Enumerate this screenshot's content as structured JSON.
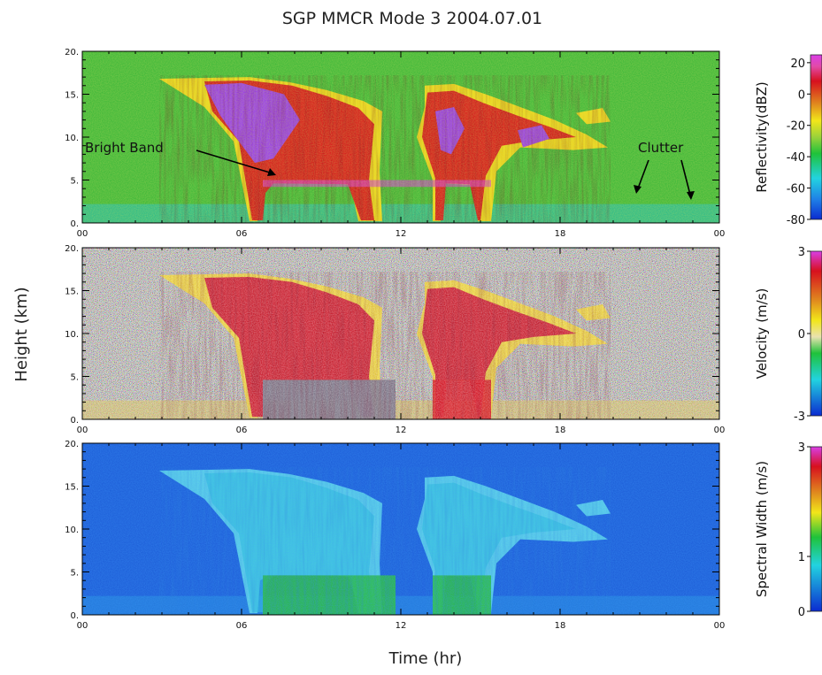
{
  "title": "SGP MMCR Mode 3 2004.07.01",
  "ylabel": "Height (km)",
  "xlabel": "Time (hr)",
  "annotations": {
    "bright_band": "Bright Band",
    "clutter": "Clutter"
  },
  "chart_data": [
    {
      "type": "heatmap",
      "field": "reflectivity",
      "colorbar_label": "Reflectivity(dBZ)",
      "colorbar_ticks": [
        "20",
        "0",
        "-20",
        "-40",
        "-60",
        "-80"
      ],
      "colorbar_values": [
        20,
        0,
        -20,
        -40,
        -60,
        -80
      ],
      "clim": [
        -80,
        25
      ],
      "x_ticks": [
        "00",
        "06",
        "12",
        "18",
        "00"
      ],
      "x_values": [
        0,
        6,
        12,
        18,
        24
      ],
      "y_ticks": [
        "20.",
        "15.",
        "10.",
        "5.",
        "0."
      ],
      "y_values": [
        20,
        15,
        10,
        5,
        0
      ],
      "xlim": [
        0,
        24
      ],
      "ylim": [
        0,
        20
      ],
      "background": "#3fb83a",
      "colormap": [
        "#0b2bd0",
        "#1f7fe6",
        "#22d3e0",
        "#1fc23a",
        "#3fb83a",
        "#f2e61a",
        "#d89418",
        "#d7101e",
        "#a80c36",
        "#d93ee6",
        "#9b3cf0"
      ],
      "regions": [
        {
          "x": [
            2.9,
            6.3,
            9.8,
            11.3
          ],
          "y": [
            16.8,
            17.0,
            4.6,
            0.2
          ],
          "level": "high",
          "color": "#d7101e"
        },
        {
          "x": [
            13.0,
            15.2,
            19.8
          ],
          "y": [
            16.0,
            13.0,
            8.8
          ],
          "level": "high",
          "color": "#d7101e"
        },
        {
          "x": [
            6.4,
            8.2
          ],
          "y": [
            14.5,
            7.0
          ],
          "level": "max",
          "color": "#9b3cf0"
        }
      ]
    },
    {
      "type": "heatmap",
      "field": "velocity",
      "colorbar_label": "Velocity (m/s)",
      "colorbar_ticks": [
        "3",
        "0",
        "-3"
      ],
      "colorbar_values": [
        3,
        0,
        -3
      ],
      "clim": [
        -3,
        3
      ],
      "x_ticks": [
        "00",
        "06",
        "12",
        "18",
        "00"
      ],
      "x_values": [
        0,
        6,
        12,
        18,
        24
      ],
      "y_ticks": [
        "20.",
        "15.",
        "10.",
        "5.",
        "0."
      ],
      "y_values": [
        20,
        15,
        10,
        5,
        0
      ],
      "xlim": [
        0,
        24
      ],
      "ylim": [
        0,
        20
      ],
      "background": "noise",
      "colormap": [
        "#0b2bd0",
        "#22d3e0",
        "#1fc23a",
        "#f2e61a",
        "#e2c040",
        "#d7101e",
        "#d93ee6"
      ],
      "regions": [
        {
          "x": [
            2.9,
            11.3
          ],
          "y": [
            17.0,
            4.6
          ],
          "level": "positive",
          "color": "#f0d93a"
        },
        {
          "x": [
            13.0,
            19.8
          ],
          "y": [
            16.0,
            8.8
          ],
          "level": "positive",
          "color": "#f0d93a"
        },
        {
          "x": [
            6.8,
            11.8
          ],
          "y": [
            4.6,
            0
          ],
          "level": "negative",
          "color": "#22c8d8"
        }
      ]
    },
    {
      "type": "heatmap",
      "field": "spectral_width",
      "colorbar_label": "Spectral Width (m/s)",
      "colorbar_ticks": [
        "3",
        "1",
        "0"
      ],
      "colorbar_values": [
        3,
        1,
        0
      ],
      "clim": [
        0,
        3
      ],
      "x_ticks": [
        "00",
        "06",
        "12",
        "18",
        "00"
      ],
      "x_values": [
        0,
        6,
        12,
        18,
        24
      ],
      "y_ticks": [
        "20.",
        "15.",
        "10.",
        "5.",
        "0."
      ],
      "y_values": [
        20,
        15,
        10,
        5,
        0
      ],
      "xlim": [
        0,
        24
      ],
      "ylim": [
        0,
        20
      ],
      "background": "#1f5fd8",
      "colormap": [
        "#1f3fd0",
        "#22d3e0",
        "#1fc23a",
        "#f2e61a",
        "#d89418",
        "#d7101e",
        "#d93ee6"
      ],
      "regions": [
        {
          "x": [
            2.9,
            11.3
          ],
          "y": [
            17.0,
            4.6
          ],
          "level": "low",
          "color": "#4fd8ea"
        },
        {
          "x": [
            13.0,
            19.8
          ],
          "y": [
            16.0,
            8.8
          ],
          "level": "low",
          "color": "#4fd8ea"
        },
        {
          "x": [
            6.8,
            11.8
          ],
          "y": [
            4.6,
            0
          ],
          "level": "moderate",
          "color": "#2fbf3c"
        }
      ]
    }
  ]
}
